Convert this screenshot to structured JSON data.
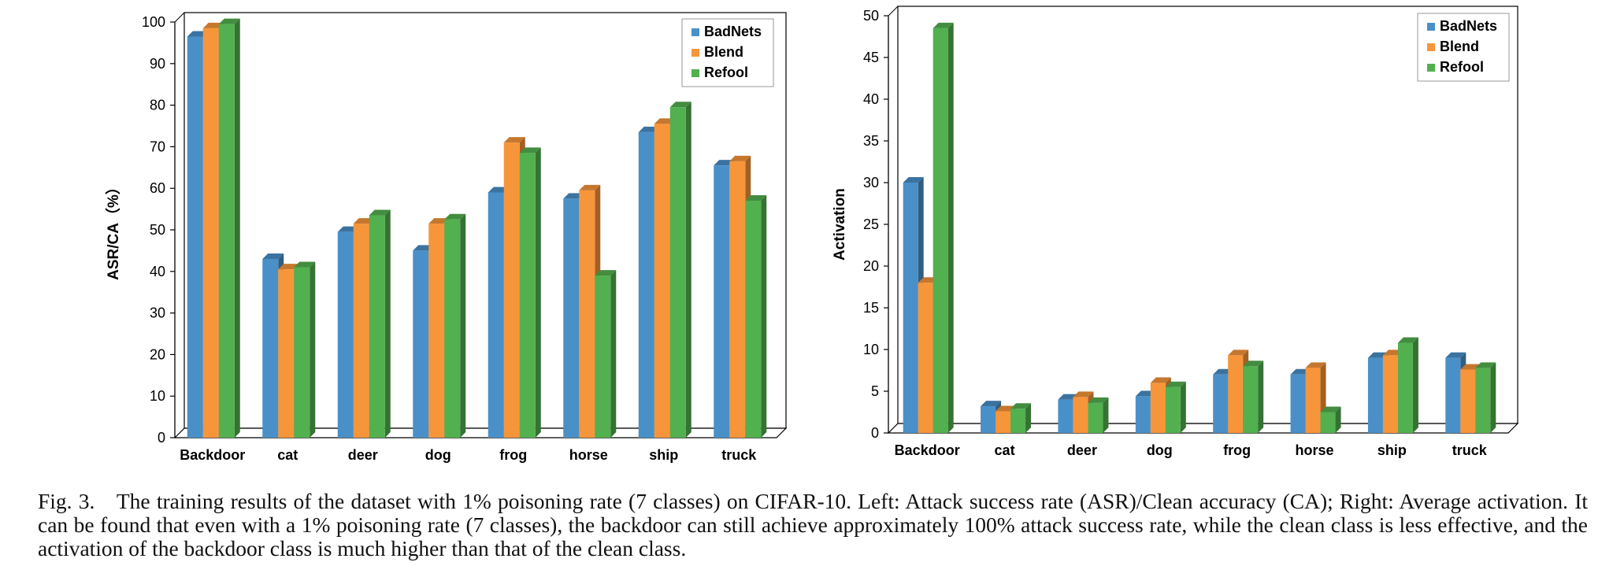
{
  "caption": "Fig. 3. The training results of the dataset with 1% poisoning rate (7 classes) on CIFAR-10. Left: Attack success rate (ASR)/Clean accuracy (CA); Right: Average activation. It can be found that even with a 1% poisoning rate (7 classes), the backdoor can still achieve approximately 100% attack success rate, while the clean class is less effective, and the activation of the backdoor class is much higher than that of the clean class.",
  "colors": {
    "BadNets": "#4a90c8",
    "Blend": "#f7953a",
    "Refool": "#52b04f"
  },
  "chart_data": [
    {
      "type": "bar",
      "style": "3d-clustered",
      "title": "",
      "xlabel": "",
      "ylabel": "ASR/CA（%）",
      "ylim": [
        0,
        100
      ],
      "yticks": [
        "0",
        "10",
        "20",
        "30",
        "40",
        "50",
        "60",
        "70",
        "80",
        "90",
        "100"
      ],
      "categories": [
        "Backdoor",
        "cat",
        "deer",
        "dog",
        "frog",
        "horse",
        "ship",
        "truck"
      ],
      "series": [
        {
          "name": "BadNets",
          "values": [
            96.5,
            43,
            49.5,
            45,
            59,
            57.5,
            73.5,
            65.5
          ]
        },
        {
          "name": "Blend",
          "values": [
            98.5,
            40.5,
            51.5,
            51.5,
            71,
            59.5,
            75.5,
            66.5
          ]
        },
        {
          "name": "Refool",
          "values": [
            99.5,
            41,
            53.5,
            52.5,
            68.5,
            39,
            79.5,
            57
          ]
        }
      ],
      "legend": "top-right",
      "grid": false
    },
    {
      "type": "bar",
      "style": "3d-clustered",
      "title": "",
      "xlabel": "",
      "ylabel": "Activation",
      "ylim": [
        0,
        50
      ],
      "yticks": [
        "0",
        "5",
        "10",
        "15",
        "20",
        "25",
        "30",
        "35",
        "40",
        "45",
        "50"
      ],
      "categories": [
        "Backdoor",
        "cat",
        "deer",
        "dog",
        "frog",
        "horse",
        "ship",
        "truck"
      ],
      "series": [
        {
          "name": "BadNets",
          "values": [
            30,
            3.2,
            4,
            4.4,
            7,
            7,
            9,
            9
          ]
        },
        {
          "name": "Blend",
          "values": [
            18,
            2.6,
            4.3,
            6,
            9.3,
            7.8,
            9.3,
            7.6
          ]
        },
        {
          "name": "Refool",
          "values": [
            48.5,
            2.9,
            3.6,
            5.5,
            8,
            2.5,
            10.8,
            7.8
          ]
        }
      ],
      "legend": "top-right",
      "grid": false
    }
  ]
}
